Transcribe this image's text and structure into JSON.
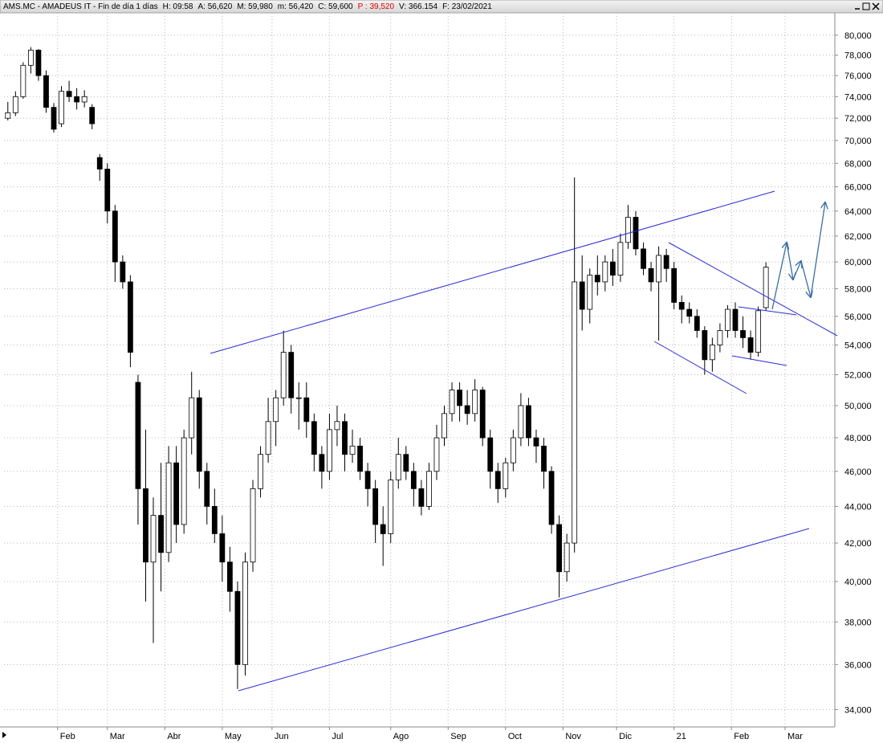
{
  "window": {
    "title": "AMS.MC - AMADEUS IT - Fin de día 1 días",
    "fields": [
      "H: 09:58",
      "A: 56,620",
      "M: 59,980",
      "m: 56,420",
      "C: 59,600"
    ],
    "highlight": "P : 39,520",
    "fields_after": [
      "V: 366.154",
      "F: 23/02/2021"
    ]
  },
  "chart_data": {
    "type": "candlestick",
    "log_y": true,
    "grid": true,
    "up_color": "#ffffff",
    "down_color": "#000000",
    "ylim": [
      33260,
      82300
    ],
    "yticks": [
      {
        "value": 34000,
        "label": "34,000"
      },
      {
        "value": 36000,
        "label": "36,000"
      },
      {
        "value": 38000,
        "label": "38,000"
      },
      {
        "value": 40000,
        "label": "40,000"
      },
      {
        "value": 42000,
        "label": "42,000"
      },
      {
        "value": 44000,
        "label": "44,000"
      },
      {
        "value": 46000,
        "label": "46,000"
      },
      {
        "value": 48000,
        "label": "48,000"
      },
      {
        "value": 50000,
        "label": "50,000"
      },
      {
        "value": 52000,
        "label": "52,000"
      },
      {
        "value": 54000,
        "label": "54,000"
      },
      {
        "value": 56000,
        "label": "56,000"
      },
      {
        "value": 58000,
        "label": "58,000"
      },
      {
        "value": 60000,
        "label": "60,000"
      },
      {
        "value": 62000,
        "label": "62,000"
      },
      {
        "value": 64000,
        "label": "64,000"
      },
      {
        "value": 66000,
        "label": "66,000"
      },
      {
        "value": 68000,
        "label": "68,000"
      },
      {
        "value": 70000,
        "label": "70,000"
      },
      {
        "value": 72000,
        "label": "72,000"
      },
      {
        "value": 74000,
        "label": "74,000"
      },
      {
        "value": 76000,
        "label": "76,000"
      },
      {
        "value": 78000,
        "label": "78,000"
      },
      {
        "value": 80000,
        "label": "80,000"
      }
    ],
    "xlim": [
      -0.5,
      108
    ],
    "xticks": [
      {
        "value": 6.5,
        "label": "Feb"
      },
      {
        "value": 13,
        "label": "Mar"
      },
      {
        "value": 20.5,
        "label": "Abr"
      },
      {
        "value": 28,
        "label": "May"
      },
      {
        "value": 34.5,
        "label": "Jun"
      },
      {
        "value": 42,
        "label": "Jul"
      },
      {
        "value": 50,
        "label": "Ago"
      },
      {
        "value": 57.5,
        "label": "Sep"
      },
      {
        "value": 65,
        "label": "Oct"
      },
      {
        "value": 72.5,
        "label": "Nov"
      },
      {
        "value": 79.5,
        "label": "Dic"
      },
      {
        "value": 87,
        "label": "21"
      },
      {
        "value": 94.5,
        "label": "Feb"
      },
      {
        "value": 101.5,
        "label": "Mar"
      }
    ],
    "open": [
      72000,
      72500,
      74000,
      77000,
      78500,
      76000,
      73000,
      71500,
      74500,
      74000,
      73500,
      73000,
      68500,
      67500,
      64000,
      60000,
      58500,
      51500,
      45000,
      41000,
      43500,
      41500,
      46500,
      43000,
      48000,
      50500,
      46000,
      44000,
      42500,
      41000,
      39500,
      36000,
      41000,
      45000,
      47000,
      49000,
      50500,
      53500,
      50500,
      50500,
      49000,
      47000,
      46000,
      48500,
      49000,
      47000,
      47500,
      46000,
      45000,
      43000,
      42500,
      45500,
      47000,
      46000,
      45000,
      44000,
      46000,
      48000,
      49500,
      51000,
      50000,
      49500,
      51000,
      48000,
      46000,
      45000,
      46500,
      48000,
      50000,
      48000,
      47500,
      46000,
      43000,
      40500,
      42000,
      58500,
      56500,
      59000,
      58500,
      60000,
      59000,
      61500,
      63500,
      61000,
      59500,
      58500,
      60500,
      59500,
      57000,
      56500,
      56000,
      55000,
      53000,
      54000,
      55000,
      56500,
      55000,
      54500,
      53500,
      56620
    ],
    "high": [
      73500,
      74500,
      77300,
      78800,
      78600,
      76500,
      73400,
      75000,
      75500,
      74800,
      74600,
      73300,
      68800,
      68000,
      64500,
      60500,
      59000,
      52000,
      48500,
      44500,
      46500,
      47500,
      47500,
      48500,
      52200,
      51000,
      46500,
      45000,
      43500,
      41800,
      40000,
      41500,
      45500,
      47500,
      50500,
      51000,
      55000,
      54000,
      51500,
      51500,
      49500,
      47500,
      49500,
      50000,
      49500,
      48500,
      48000,
      46500,
      45500,
      44000,
      46000,
      48000,
      47500,
      46500,
      45500,
      46500,
      48800,
      50000,
      51500,
      51500,
      51000,
      51700,
      51200,
      48500,
      46500,
      46800,
      48500,
      50800,
      50500,
      48500,
      48000,
      46300,
      43500,
      42500,
      66800,
      60500,
      59500,
      60500,
      60500,
      61000,
      62200,
      64500,
      64000,
      61500,
      60000,
      61200,
      61000,
      60000,
      57500,
      57000,
      56500,
      55300,
      54500,
      55500,
      56800,
      57000,
      56000,
      55000,
      56700,
      59980
    ],
    "low": [
      71800,
      72200,
      73800,
      76200,
      75500,
      72500,
      70700,
      71200,
      73500,
      72800,
      73000,
      71000,
      66500,
      63000,
      58500,
      58000,
      52500,
      43000,
      39000,
      37000,
      39500,
      41000,
      42000,
      42500,
      47000,
      45000,
      43000,
      42000,
      40000,
      38500,
      34900,
      35500,
      40500,
      44500,
      46500,
      47500,
      50000,
      49500,
      48500,
      48000,
      46000,
      45000,
      45500,
      47500,
      46000,
      46500,
      45500,
      44000,
      42000,
      40800,
      42000,
      45000,
      45500,
      44000,
      43500,
      43800,
      45500,
      47500,
      49000,
      49000,
      48800,
      49000,
      47500,
      45000,
      44200,
      44500,
      46000,
      47500,
      47500,
      46500,
      45000,
      42500,
      39200,
      40000,
      41500,
      55000,
      55500,
      57500,
      57800,
      58200,
      58500,
      61000,
      60500,
      59000,
      57800,
      54300,
      58500,
      56500,
      55500,
      55500,
      54500,
      52000,
      52200,
      53500,
      54500,
      54500,
      53800,
      53000,
      53200,
      56420
    ],
    "close": [
      72500,
      74000,
      77000,
      78500,
      76000,
      73000,
      71000,
      74500,
      74000,
      73500,
      74000,
      71500,
      67500,
      64000,
      60000,
      58500,
      53500,
      45000,
      41000,
      43500,
      41500,
      46500,
      43000,
      48000,
      50500,
      46000,
      44000,
      42500,
      41000,
      39500,
      36000,
      41000,
      45000,
      47000,
      49000,
      50500,
      53500,
      50500,
      50500,
      49000,
      47000,
      46000,
      48500,
      49000,
      47000,
      47500,
      46000,
      45000,
      43000,
      42500,
      45500,
      47000,
      46000,
      45000,
      44000,
      46000,
      48000,
      49500,
      51000,
      50000,
      49500,
      51000,
      48000,
      46000,
      45000,
      46500,
      48000,
      50000,
      48000,
      47500,
      46000,
      43000,
      40500,
      42000,
      58500,
      56500,
      59000,
      58500,
      60000,
      59000,
      61500,
      63500,
      61000,
      59500,
      58500,
      60500,
      59500,
      57000,
      56500,
      56000,
      55000,
      53000,
      54000,
      55000,
      56500,
      55000,
      54500,
      53500,
      56400,
      59600
    ]
  }
}
